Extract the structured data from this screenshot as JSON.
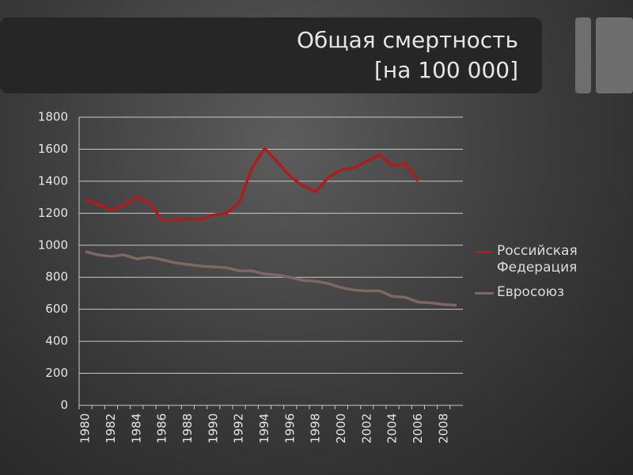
{
  "chart_data": {
    "type": "line",
    "title": "Общая смертность",
    "subtitle": "[на 100 000]",
    "categories": [
      "1980",
      null,
      "1982",
      null,
      "1984",
      null,
      "1986",
      null,
      "1988",
      null,
      "1990",
      null,
      "1992",
      null,
      "1994",
      null,
      "1996",
      null,
      "1998",
      null,
      "2000",
      null,
      "2002",
      null,
      "2004",
      null,
      "2006",
      null,
      "2008",
      null
    ],
    "series": [
      {
        "name": "Российская Федерация",
        "color": "#b01c1c",
        "values": [
          1285,
          1255,
          1220,
          1250,
          1300,
          1265,
          1155,
          1155,
          1165,
          1160,
          1190,
          1200,
          1265,
          1480,
          1605,
          1520,
          1430,
          1370,
          1335,
          1425,
          1470,
          1485,
          1525,
          1565,
          1495,
          1510,
          1400,
          null,
          null,
          null
        ]
      },
      {
        "name": "Евросоюз",
        "color": "#7d6862",
        "values": [
          960,
          940,
          930,
          940,
          915,
          925,
          910,
          890,
          880,
          870,
          865,
          860,
          840,
          840,
          820,
          815,
          800,
          780,
          775,
          760,
          735,
          720,
          715,
          715,
          680,
          675,
          645,
          640,
          630,
          625
        ]
      }
    ],
    "ylim": [
      0,
      1800
    ],
    "yticks": [
      0,
      200,
      400,
      600,
      800,
      1000,
      1200,
      1400,
      1600,
      1800
    ],
    "grid": true,
    "legend": "right"
  }
}
